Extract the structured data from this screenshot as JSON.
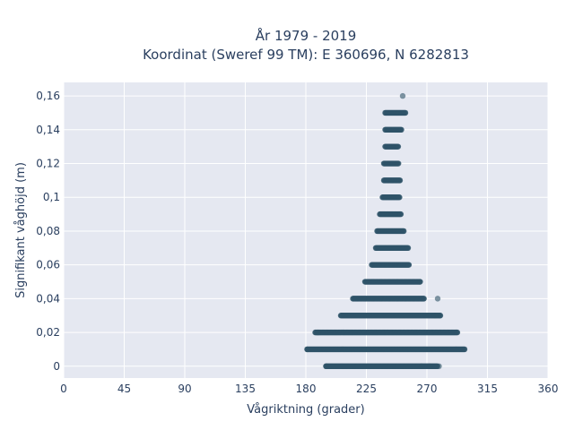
{
  "chart_data": {
    "type": "scatter",
    "title_line1": "År 1979 - 2019",
    "title_line2": "Koordinat (Sweref 99 TM): E 360696, N 6282813",
    "xlabel": "Vågriktning (grader)",
    "ylabel": "Signifikant våghöjd (m)",
    "xlim": [
      0,
      360
    ],
    "ylim": [
      -0.007,
      0.168
    ],
    "x_ticks": [
      0,
      45,
      90,
      135,
      180,
      225,
      270,
      315,
      360
    ],
    "x_tick_labels": [
      "0",
      "45",
      "90",
      "135",
      "180",
      "225",
      "270",
      "315",
      "360"
    ],
    "y_ticks": [
      0,
      0.02,
      0.04,
      0.06,
      0.08,
      0.1,
      0.12,
      0.14,
      0.16
    ],
    "y_tick_labels": [
      "0",
      "0,02",
      "0,04",
      "0,06",
      "0,08",
      "0,1",
      "0,12",
      "0,14",
      "0,16"
    ],
    "grid": true,
    "legend": "none",
    "colors": {
      "plot_bg": "#e5e8f1",
      "grid": "#ffffff",
      "marker": "#2f5468",
      "text": "#2a3f5f"
    },
    "rows": [
      {
        "y": 0.0,
        "x_min": 195,
        "x_max": 278
      },
      {
        "y": 0.01,
        "x_min": 181,
        "x_max": 298
      },
      {
        "y": 0.02,
        "x_min": 187,
        "x_max": 293
      },
      {
        "y": 0.03,
        "x_min": 206,
        "x_max": 280
      },
      {
        "y": 0.04,
        "x_min": 215,
        "x_max": 268
      },
      {
        "y": 0.05,
        "x_min": 224,
        "x_max": 265
      },
      {
        "y": 0.06,
        "x_min": 229,
        "x_max": 257
      },
      {
        "y": 0.07,
        "x_min": 232,
        "x_max": 256
      },
      {
        "y": 0.08,
        "x_min": 233,
        "x_max": 253
      },
      {
        "y": 0.09,
        "x_min": 235,
        "x_max": 251
      },
      {
        "y": 0.1,
        "x_min": 237,
        "x_max": 250
      },
      {
        "y": 0.11,
        "x_min": 238,
        "x_max": 250
      },
      {
        "y": 0.12,
        "x_min": 238,
        "x_max": 249
      },
      {
        "y": 0.13,
        "x_min": 239,
        "x_max": 249
      },
      {
        "y": 0.14,
        "x_min": 239,
        "x_max": 251
      },
      {
        "y": 0.15,
        "x_min": 239,
        "x_max": 254
      }
    ],
    "outliers": [
      {
        "x": 252,
        "y": 0.16
      },
      {
        "x": 278,
        "y": 0.04
      },
      {
        "x": 265,
        "y": 0.05
      },
      {
        "x": 280,
        "y": 0.03
      },
      {
        "x": 276,
        "y": 0.03
      },
      {
        "x": 195,
        "y": 0.0
      },
      {
        "x": 266,
        "y": 0.0
      },
      {
        "x": 272,
        "y": 0.0
      },
      {
        "x": 279,
        "y": 0.0
      },
      {
        "x": 189,
        "y": 0.02
      },
      {
        "x": 181,
        "y": 0.01
      }
    ]
  }
}
